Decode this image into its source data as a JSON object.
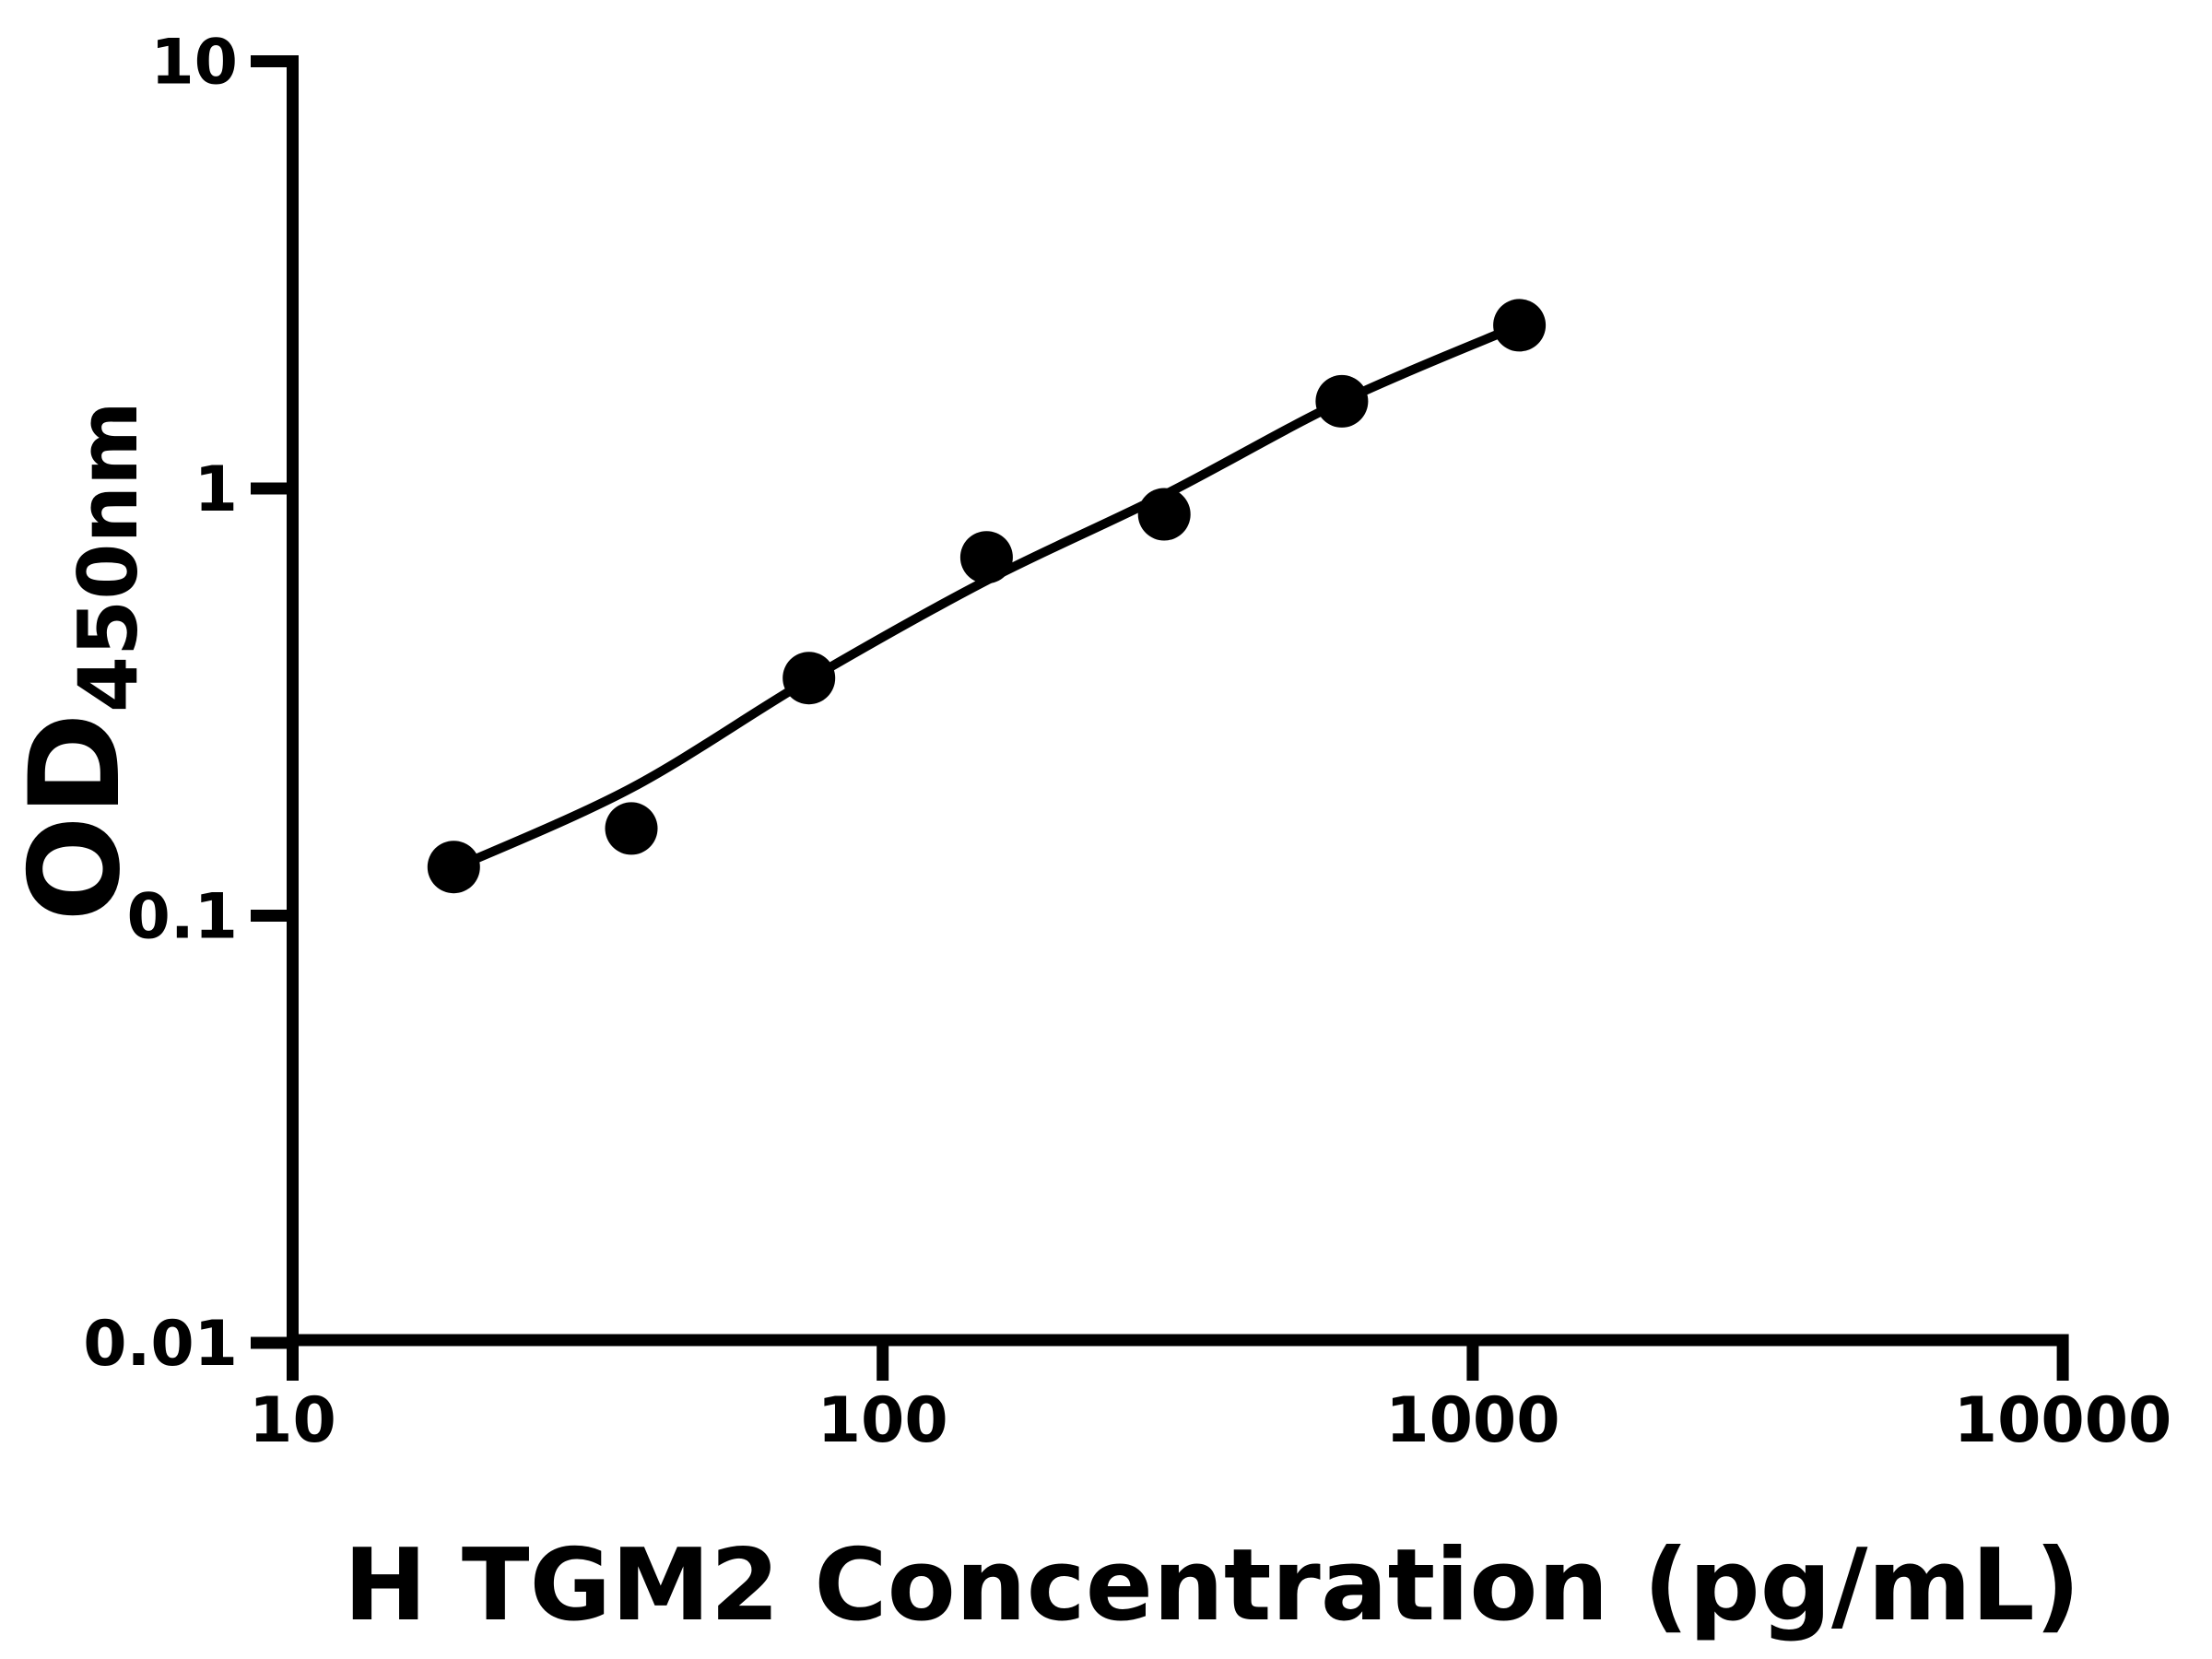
{
  "figure": {
    "background_color": "#ffffff",
    "ink_color": "#000000"
  },
  "chart_data": {
    "type": "scatter",
    "title": "",
    "xlabel": "H TGM2 Concentration (pg/mL)",
    "ylabel_main": "OD",
    "ylabel_sub": "450nm",
    "x_scale": "log",
    "y_scale": "log",
    "xlim": [
      10,
      10000
    ],
    "ylim": [
      0.01,
      10
    ],
    "grid": false,
    "legend": null,
    "x_ticks": [
      10,
      100,
      1000,
      10000
    ],
    "x_tick_labels": [
      "10",
      "100",
      "1000",
      "10000"
    ],
    "y_ticks": [
      10,
      1,
      0.1,
      0.01
    ],
    "y_tick_labels": [
      "10",
      "1",
      "0.1",
      "0.01"
    ],
    "points": {
      "x": [
        18.75,
        37.5,
        75,
        150,
        300,
        600,
        1200
      ],
      "y": [
        0.13,
        0.16,
        0.36,
        0.69,
        0.87,
        1.6,
        2.41
      ]
    },
    "fit_line": {
      "x": [
        18.75,
        37.5,
        75,
        150,
        300,
        600,
        1200
      ],
      "y": [
        0.129,
        0.199,
        0.357,
        0.609,
        0.966,
        1.6,
        2.41
      ]
    }
  }
}
